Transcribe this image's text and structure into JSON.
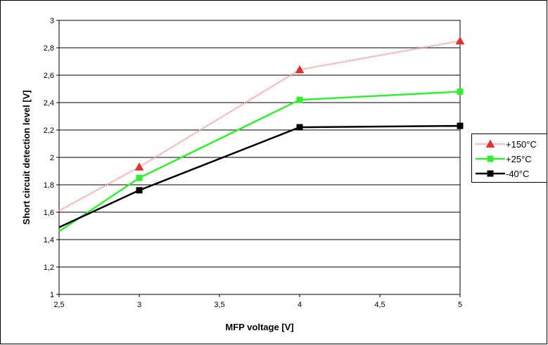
{
  "chart_data": {
    "type": "line",
    "title": "",
    "xlabel": "MFP voltage [V]",
    "ylabel": "Short circuit detection level [V]",
    "xlim": [
      2.5,
      5
    ],
    "ylim": [
      1,
      3
    ],
    "x_ticks": [
      "2,5",
      "3",
      "3,5",
      "4",
      "4,5",
      "5"
    ],
    "y_ticks": [
      "1",
      "1,2",
      "1,4",
      "1,6",
      "1,8",
      "2",
      "2,2",
      "2,4",
      "2,6",
      "2,8",
      "3"
    ],
    "grid": "horizontal",
    "legend_position": "right",
    "series": [
      {
        "name": "+150°C",
        "color": "#e03030",
        "marker": "triangle",
        "line_style": "dotted-light",
        "x": [
          2.5,
          3,
          4,
          5
        ],
        "y": [
          1.61,
          1.93,
          2.64,
          2.85
        ]
      },
      {
        "name": "+25°C",
        "color": "#33ee33",
        "marker": "square",
        "line_style": "solid",
        "x": [
          2.5,
          3,
          4,
          5
        ],
        "y": [
          1.46,
          1.85,
          2.42,
          2.48
        ]
      },
      {
        "name": "-40°C",
        "color": "#000000",
        "marker": "square",
        "line_style": "solid",
        "x": [
          2.5,
          3,
          4,
          5
        ],
        "y": [
          1.49,
          1.76,
          2.22,
          2.23
        ]
      }
    ]
  }
}
